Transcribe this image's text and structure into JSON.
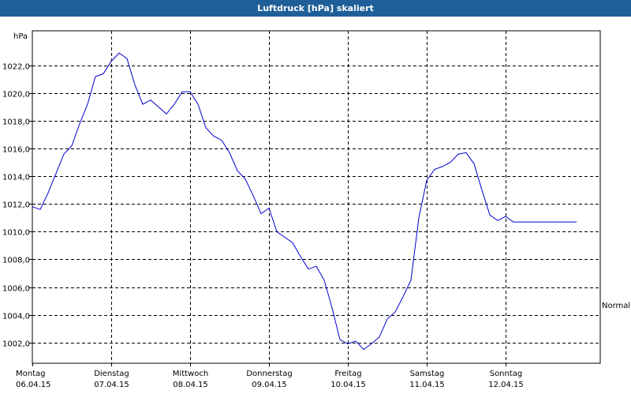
{
  "window": {
    "title": "Luftdruck [hPa] skaliert"
  },
  "chart_data": {
    "type": "line",
    "title": "Luftdruck [hPa] skaliert",
    "ylabel": "hPa",
    "xlabel": "",
    "ylim": [
      1000.5,
      1024.5
    ],
    "xlim": [
      0,
      7.2
    ],
    "y_ticks": [
      1002,
      1004,
      1006,
      1008,
      1010,
      1012,
      1014,
      1016,
      1018,
      1020,
      1022
    ],
    "y_tick_labels": [
      "1002,0",
      "1004,0",
      "1006,0",
      "1008,0",
      "1010,0",
      "1012,0",
      "1014,0",
      "1016,0",
      "1018,0",
      "1020,0",
      "1022,0"
    ],
    "x_ticks": [
      {
        "x": 0,
        "day": "Montag",
        "date": "06.04.15"
      },
      {
        "x": 1,
        "day": "Dienstag",
        "date": "07.04.15"
      },
      {
        "x": 2,
        "day": "Mittwoch",
        "date": "08.04.15"
      },
      {
        "x": 3,
        "day": "Donnerstag",
        "date": "09.04.15"
      },
      {
        "x": 4,
        "day": "Freitag",
        "date": "10.04.15"
      },
      {
        "x": 5,
        "day": "Samstag",
        "date": "11.04.15"
      },
      {
        "x": 6,
        "day": "Sonntag",
        "date": "12.04.15"
      }
    ],
    "grid": true,
    "line_color": "#0000cc",
    "right_label": "Normal",
    "series": [
      {
        "name": "",
        "x": [
          0,
          0.1,
          0.2,
          0.3,
          0.4,
          0.5,
          0.6,
          0.7,
          0.8,
          0.9,
          1.0,
          1.1,
          1.2,
          1.3,
          1.4,
          1.5,
          1.6,
          1.7,
          1.8,
          1.9,
          2.0,
          2.1,
          2.2,
          2.3,
          2.4,
          2.5,
          2.6,
          2.7,
          2.8,
          2.9,
          3.0,
          3.1,
          3.2,
          3.3,
          3.4,
          3.5,
          3.6,
          3.7,
          3.8,
          3.9,
          4.0,
          4.1,
          4.2,
          4.3,
          4.4,
          4.5,
          4.6,
          4.7,
          4.8,
          4.9,
          5.0,
          5.1,
          5.2,
          5.3,
          5.4,
          5.5,
          5.6,
          5.7,
          5.8,
          5.9,
          6.0,
          6.1,
          6.2,
          6.3,
          6.4,
          6.5,
          6.6,
          6.7,
          6.8,
          6.9
        ],
        "values": [
          1011.8,
          1011.6,
          1012.8,
          1014.2,
          1015.6,
          1016.2,
          1017.8,
          1019.2,
          1021.2,
          1021.4,
          1022.3,
          1022.9,
          1022.5,
          1020.6,
          1019.2,
          1019.5,
          1019.0,
          1018.5,
          1019.2,
          1020.1,
          1020.1,
          1019.2,
          1017.5,
          1016.9,
          1016.6,
          1015.7,
          1014.4,
          1013.8,
          1012.6,
          1011.3,
          1011.7,
          1010.0,
          1009.6,
          1009.2,
          1008.2,
          1007.3,
          1007.5,
          1006.5,
          1004.5,
          1002.2,
          1001.9,
          1002.1,
          1001.5,
          1001.9,
          1002.4,
          1003.7,
          1004.2,
          1005.3,
          1006.5,
          1011.0,
          1013.7,
          1014.5,
          1014.7,
          1015.0,
          1015.6,
          1015.7,
          1014.9,
          1013.0,
          1011.2,
          1010.8,
          1011.1,
          1010.7,
          1010.7,
          1010.7,
          1010.7,
          1010.7,
          1010.7,
          1010.7,
          1010.7,
          1010.7
        ]
      }
    ]
  }
}
